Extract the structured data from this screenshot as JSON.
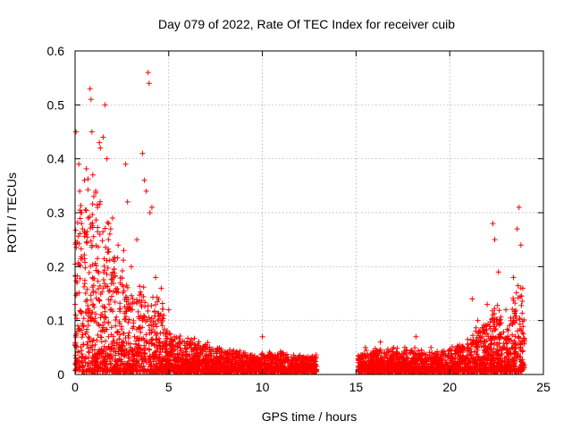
{
  "chart_data": {
    "type": "scatter",
    "title": "Day 079 of 2022, Rate Of TEC Index for receiver cuib",
    "xlabel": "GPS time / hours",
    "ylabel": "ROTI / TECUs",
    "xlim": [
      0,
      25
    ],
    "ylim": [
      0,
      0.6
    ],
    "xticks": [
      "0",
      "5",
      "10",
      "15",
      "20",
      "25"
    ],
    "yticks": [
      "0",
      "0.1",
      "0.2",
      "0.3",
      "0.4",
      "0.5",
      "0.6"
    ],
    "grid": true,
    "marker": "plus",
    "color": "#ff0000",
    "data_gap_hours": [
      12.9,
      15.1
    ],
    "series": [
      {
        "points": [
          [
            0.05,
            0.45
          ],
          [
            0.2,
            0.39
          ],
          [
            0.25,
            0.34
          ],
          [
            0.3,
            0.3
          ],
          [
            0.35,
            0.28
          ],
          [
            0.4,
            0.27
          ],
          [
            0.5,
            0.36
          ],
          [
            0.6,
            0.26
          ],
          [
            0.7,
            0.29
          ],
          [
            0.8,
            0.53
          ],
          [
            0.85,
            0.51
          ],
          [
            0.9,
            0.45
          ],
          [
            0.95,
            0.37
          ],
          [
            1.0,
            0.33
          ],
          [
            1.1,
            0.34
          ],
          [
            1.2,
            0.31
          ],
          [
            1.3,
            0.43
          ],
          [
            1.35,
            0.42
          ],
          [
            1.5,
            0.44
          ],
          [
            1.6,
            0.5
          ],
          [
            1.7,
            0.4
          ],
          [
            1.8,
            0.28
          ],
          [
            1.9,
            0.27
          ],
          [
            2.0,
            0.29
          ],
          [
            2.1,
            0.21
          ],
          [
            2.3,
            0.24
          ],
          [
            2.6,
            0.23
          ],
          [
            2.7,
            0.39
          ],
          [
            2.8,
            0.32
          ],
          [
            3.0,
            0.2
          ],
          [
            3.3,
            0.25
          ],
          [
            3.6,
            0.41
          ],
          [
            3.7,
            0.36
          ],
          [
            3.8,
            0.34
          ],
          [
            3.9,
            0.56
          ],
          [
            3.95,
            0.54
          ],
          [
            4.0,
            0.3
          ],
          [
            4.1,
            0.31
          ],
          [
            4.3,
            0.18
          ],
          [
            4.6,
            0.16
          ],
          [
            5.0,
            0.12
          ],
          [
            5.3,
            0.07
          ],
          [
            6.0,
            0.06
          ],
          [
            7.0,
            0.05
          ],
          [
            8.0,
            0.04
          ],
          [
            9.0,
            0.04
          ],
          [
            10.0,
            0.07
          ],
          [
            11.0,
            0.04
          ],
          [
            12.0,
            0.03
          ],
          [
            12.8,
            0.03
          ],
          [
            15.5,
            0.05
          ],
          [
            16.3,
            0.06
          ],
          [
            17.0,
            0.05
          ],
          [
            18.2,
            0.07
          ],
          [
            19.0,
            0.05
          ],
          [
            20.5,
            0.05
          ],
          [
            21.2,
            0.14
          ],
          [
            21.5,
            0.1
          ],
          [
            22.0,
            0.13
          ],
          [
            22.3,
            0.28
          ],
          [
            22.4,
            0.25
          ],
          [
            22.6,
            0.19
          ],
          [
            23.0,
            0.12
          ],
          [
            23.4,
            0.18
          ],
          [
            23.6,
            0.27
          ],
          [
            23.7,
            0.31
          ],
          [
            23.8,
            0.24
          ],
          [
            23.9,
            0.16
          ]
        ],
        "envelope": [
          [
            0,
            0.22
          ],
          [
            0.5,
            0.3
          ],
          [
            1.0,
            0.28
          ],
          [
            1.5,
            0.26
          ],
          [
            2.0,
            0.18
          ],
          [
            2.5,
            0.17
          ],
          [
            3.0,
            0.12
          ],
          [
            3.5,
            0.14
          ],
          [
            4.0,
            0.11
          ],
          [
            4.5,
            0.13
          ],
          [
            5.0,
            0.06
          ],
          [
            6.0,
            0.05
          ],
          [
            7.0,
            0.045
          ],
          [
            8.0,
            0.035
          ],
          [
            9.0,
            0.03
          ],
          [
            10.0,
            0.03
          ],
          [
            11.0,
            0.03
          ],
          [
            12.0,
            0.025
          ],
          [
            12.8,
            0.025
          ],
          [
            15.2,
            0.03
          ],
          [
            16.0,
            0.035
          ],
          [
            17.0,
            0.035
          ],
          [
            18.0,
            0.035
          ],
          [
            19.0,
            0.03
          ],
          [
            20.0,
            0.035
          ],
          [
            21.0,
            0.05
          ],
          [
            21.5,
            0.07
          ],
          [
            22.0,
            0.08
          ],
          [
            22.5,
            0.11
          ],
          [
            23.0,
            0.06
          ],
          [
            23.5,
            0.13
          ],
          [
            24.0,
            0.15
          ]
        ]
      }
    ]
  }
}
